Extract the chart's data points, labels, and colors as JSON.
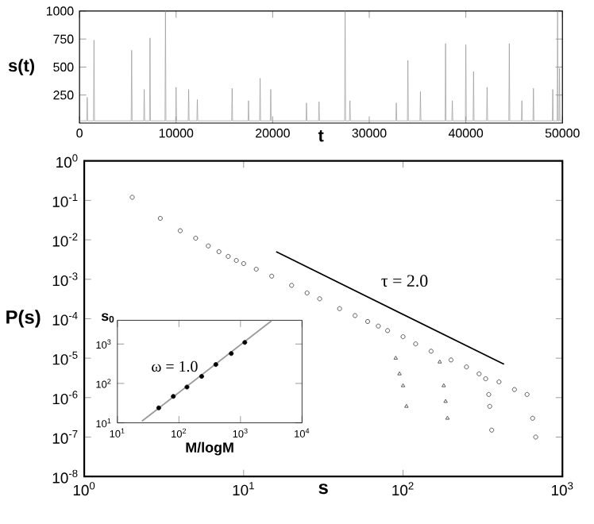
{
  "chart_data": [
    {
      "type": "line",
      "xlabel": "t",
      "ylabel": "s(t)",
      "xlim": [
        0,
        50000
      ],
      "ylim": [
        0,
        1000
      ],
      "xticks": [
        0,
        10000,
        20000,
        30000,
        40000,
        50000
      ],
      "yticks": [
        250,
        500,
        750,
        1000
      ],
      "series": [
        {
          "color": "#999999",
          "x": [
            0,
            750,
            800,
            850,
            1450,
            1500,
            1550,
            5350,
            5400,
            5450,
            6650,
            6700,
            6750,
            7250,
            7300,
            7350,
            8850,
            8900,
            8950,
            9950,
            10000,
            10050,
            11250,
            11300,
            11350,
            12150,
            12200,
            12250,
            15750,
            15800,
            15850,
            17450,
            17500,
            17550,
            18650,
            18700,
            18750,
            19750,
            19800,
            19850,
            23450,
            23500,
            23550,
            24750,
            24800,
            24850,
            27450,
            27500,
            27550,
            27950,
            28000,
            28050,
            32750,
            32800,
            32850,
            33950,
            34000,
            34050,
            35250,
            35300,
            35350,
            37850,
            37900,
            37950,
            38550,
            38600,
            38650,
            39950,
            40000,
            40050,
            40750,
            40800,
            40850,
            42150,
            42200,
            42250,
            44450,
            44500,
            44550,
            45750,
            45800,
            45850,
            46950,
            47000,
            47050,
            48950,
            49000,
            49050,
            49450,
            49500,
            49550,
            49650,
            49700,
            49750,
            50000
          ],
          "values": [
            20,
            20,
            230,
            20,
            20,
            740,
            20,
            20,
            650,
            20,
            20,
            300,
            20,
            20,
            760,
            20,
            20,
            1000,
            20,
            20,
            320,
            20,
            20,
            300,
            20,
            20,
            210,
            20,
            20,
            310,
            20,
            20,
            200,
            20,
            20,
            400,
            20,
            20,
            300,
            20,
            20,
            180,
            20,
            20,
            190,
            20,
            20,
            1000,
            20,
            20,
            200,
            20,
            20,
            180,
            20,
            20,
            560,
            20,
            20,
            280,
            20,
            20,
            710,
            20,
            20,
            200,
            20,
            20,
            700,
            20,
            20,
            460,
            20,
            20,
            320,
            20,
            20,
            710,
            20,
            20,
            200,
            20,
            20,
            310,
            20,
            20,
            300,
            20,
            20,
            1000,
            20,
            20,
            490,
            20,
            20
          ]
        }
      ]
    },
    {
      "type": "scatter",
      "xlabel": "s",
      "ylabel": "P(s)",
      "log": "xy",
      "xlim": [
        1,
        1000
      ],
      "ylim": [
        1e-08,
        1
      ],
      "xticks": [
        {
          "value": 1,
          "label": "10$^{0}$"
        },
        {
          "value": 10,
          "label": "10$^{1}$"
        },
        {
          "value": 100,
          "label": "10$^{2}$"
        },
        {
          "value": 1000,
          "label": "10$^{3}$"
        }
      ],
      "yticks": [
        {
          "value": 1e-08,
          "label": "10$^{-8}$"
        },
        {
          "value": 1e-07,
          "label": "10$^{-7}$"
        },
        {
          "value": 1e-06,
          "label": "10$^{-6}$"
        },
        {
          "value": 1e-05,
          "label": "10$^{-5}$"
        },
        {
          "value": 0.0001,
          "label": "10$^{-4}$"
        },
        {
          "value": 0.001,
          "label": "10$^{-3}$"
        },
        {
          "value": 0.01,
          "label": "10$^{-2}$"
        },
        {
          "value": 0.1,
          "label": "10$^{-1}$"
        },
        {
          "value": 1,
          "label": "10$^{0}$"
        }
      ],
      "annotations": [
        "τ = 2.0"
      ],
      "series": [
        {
          "color": "#333333",
          "marker": "circle",
          "x": [
            2,
            3,
            4,
            5,
            6,
            7,
            8,
            9,
            10,
            12,
            15,
            20,
            25,
            30,
            40,
            50,
            60,
            70,
            80,
            100,
            120,
            150,
            200,
            250,
            300,
            400,
            500,
            600,
            650,
            680
          ],
          "values": [
            0.12,
            0.035,
            0.017,
            0.011,
            0.007,
            0.005,
            0.0038,
            0.003,
            0.0025,
            0.0018,
            0.0012,
            0.0007,
            0.00045,
            0.00032,
            0.00018,
            0.00012,
            8.5e-05,
            6.5e-05,
            5e-05,
            3.5e-05,
            2.3e-05,
            1.5e-05,
            9e-06,
            6e-06,
            4e-06,
            2.5e-06,
            1.6e-06,
            1.2e-06,
            3e-07,
            1e-07
          ]
        },
        {
          "color": "#333333",
          "marker": "triangle",
          "x": [
            90,
            95,
            100,
            105
          ],
          "values": [
            1e-05,
            4e-06,
            2e-06,
            6e-07
          ]
        },
        {
          "color": "#333333",
          "marker": "triangle",
          "x": [
            170,
            180,
            185,
            190
          ],
          "values": [
            8e-06,
            2e-06,
            8e-07,
            3e-07
          ]
        },
        {
          "color": "#333333",
          "marker": "circle",
          "x": [
            330,
            345,
            350,
            360
          ],
          "values": [
            3e-06,
            1.2e-06,
            6e-07,
            1.5e-07
          ]
        },
        {
          "type": "line",
          "color": "#000000",
          "x": [
            16,
            430
          ],
          "values": [
            0.005,
            7e-06
          ]
        }
      ]
    },
    {
      "type": "scatter",
      "xlabel": "M/logM",
      "ylabel": "s$_{0}$",
      "log": "xy",
      "xlim": [
        10,
        10000
      ],
      "ylim": [
        10,
        4000
      ],
      "xticks": [
        {
          "value": 10,
          "label": "10$^{1}$"
        },
        {
          "value": 100,
          "label": "10$^{2}$"
        },
        {
          "value": 1000,
          "label": "10$^{3}$"
        },
        {
          "value": 10000,
          "label": "10$^{4}$"
        }
      ],
      "yticks": [
        {
          "value": 10,
          "label": "10$^{1}$"
        },
        {
          "value": 100,
          "label": "10$^{2}$"
        },
        {
          "value": 1000,
          "label": "10$^{3}$"
        }
      ],
      "annotations": [
        "ω = 1.0"
      ],
      "series": [
        {
          "color": "#000000",
          "marker": "filled circle",
          "x": [
            47,
            81,
            135,
            234,
            398,
            708,
            1175
          ],
          "values": [
            24,
            47,
            81,
            151,
            302,
            575,
            1100
          ]
        },
        {
          "type": "line",
          "color": "#999999",
          "x": [
            25,
            3200
          ],
          "values": [
            11,
            3900
          ]
        }
      ]
    }
  ]
}
